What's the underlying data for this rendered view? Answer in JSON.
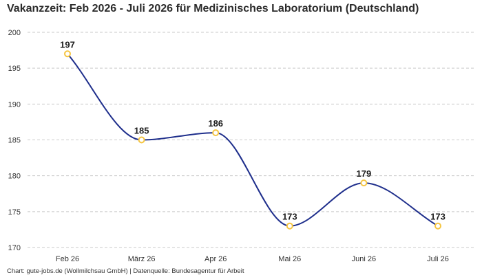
{
  "title": "Vakanzzeit: Feb 2026 - Juli 2026 für Medizinisches Laboratorium (Deutschland)",
  "source": "Chart: gute-jobs.de (Wollmilchsau GmbH) | Datenquelle: Bundesagentur für Arbeit",
  "colors": {
    "line": "#1f2f8c",
    "marker_stroke": "#f5c542",
    "marker_fill": "#ffffff",
    "grid": "#c8c8c8"
  },
  "chart_data": {
    "type": "line",
    "title": "Vakanzzeit: Feb 2026 - Juli 2026 für Medizinisches Laboratorium (Deutschland)",
    "categories": [
      "Feb 26",
      "März 26",
      "Apr 26",
      "Mai 26",
      "Juni 26",
      "Juli 26"
    ],
    "series": [
      {
        "values": [
          197,
          185,
          186,
          173,
          179,
          173
        ]
      }
    ],
    "data_labels": [
      "197",
      "185",
      "186",
      "173",
      "179",
      "173"
    ],
    "ylim": [
      170,
      200
    ],
    "yticks": [
      170,
      175,
      180,
      185,
      190,
      195,
      200
    ],
    "grid": "horizontal-dashed",
    "smooth": true,
    "legend": "none",
    "xlabel": "",
    "ylabel": ""
  }
}
